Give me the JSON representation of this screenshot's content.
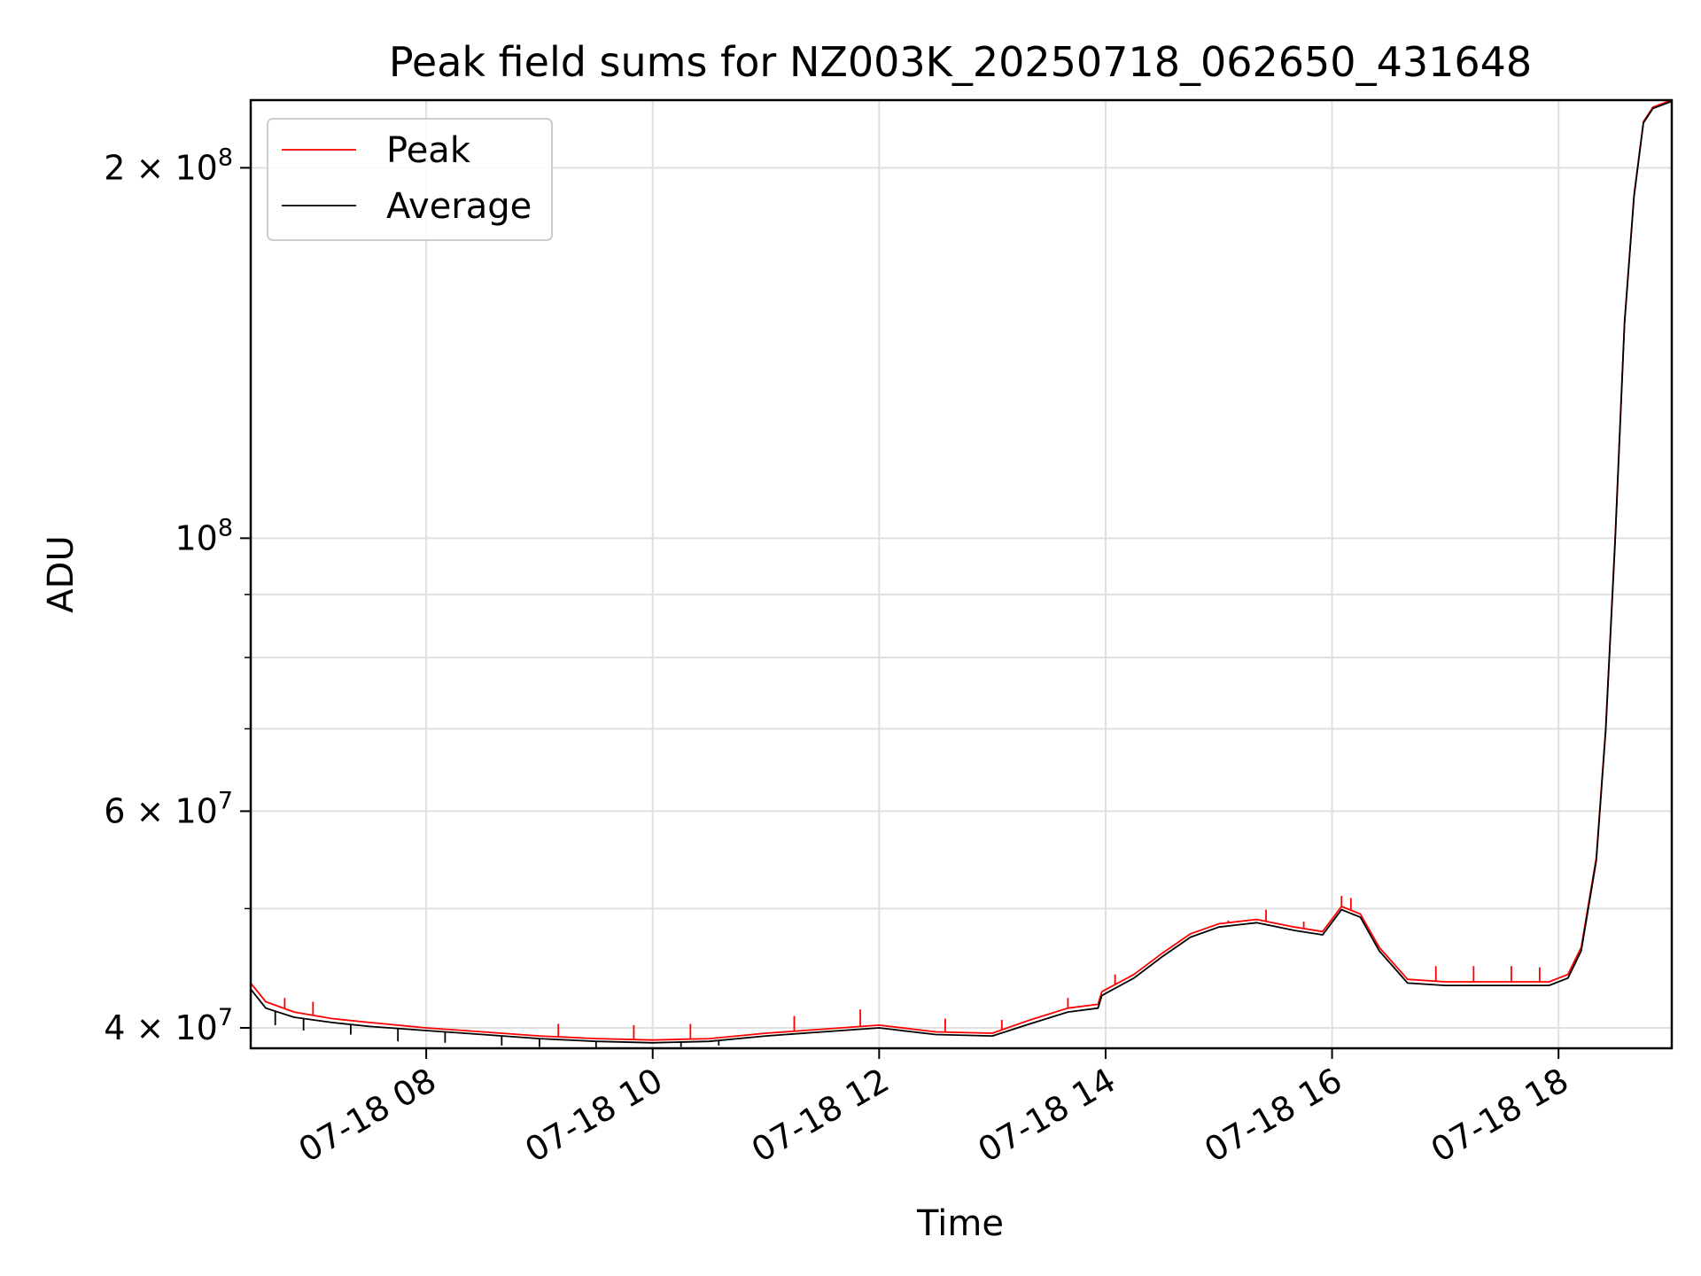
{
  "chart_data": {
    "type": "line",
    "title": "Peak field sums for NZ003K_20250718_062650_431648",
    "xlabel": "Time",
    "ylabel": "ADU",
    "yscale": "log",
    "xlim": [
      "2025-07-18 06:27",
      "2025-07-18 19:00"
    ],
    "ylim": [
      38500000,
      227000000
    ],
    "grid": true,
    "legend_position": "upper-left",
    "x_ticks": [
      {
        "value": "2025-07-18 08:00",
        "label": "07-18 08"
      },
      {
        "value": "2025-07-18 10:00",
        "label": "07-18 10"
      },
      {
        "value": "2025-07-18 12:00",
        "label": "07-18 12"
      },
      {
        "value": "2025-07-18 14:00",
        "label": "07-18 14"
      },
      {
        "value": "2025-07-18 16:00",
        "label": "07-18 16"
      },
      {
        "value": "2025-07-18 18:00",
        "label": "07-18 18"
      }
    ],
    "y_ticks": [
      {
        "value": 40000000,
        "label": "4 × 10^7",
        "mantissa": "4 × 10",
        "exp": "7"
      },
      {
        "value": 60000000,
        "label": "6 × 10^7",
        "mantissa": "6 × 10",
        "exp": "7"
      },
      {
        "value": 100000000,
        "label": "10^8",
        "mantissa": "10",
        "exp": "8"
      },
      {
        "value": 200000000,
        "label": "2 × 10^8",
        "mantissa": "2 × 10",
        "exp": "8"
      }
    ],
    "y_minor_ticks": [
      50000000,
      70000000,
      80000000,
      90000000
    ],
    "series": [
      {
        "name": "Peak",
        "color": "#ff0000",
        "x": [
          "2025-07-18 06:27",
          "2025-07-18 06:35",
          "2025-07-18 06:50",
          "2025-07-18 07:10",
          "2025-07-18 07:30",
          "2025-07-18 08:00",
          "2025-07-18 08:30",
          "2025-07-18 09:00",
          "2025-07-18 09:30",
          "2025-07-18 10:00",
          "2025-07-18 10:30",
          "2025-07-18 11:00",
          "2025-07-18 11:30",
          "2025-07-18 12:00",
          "2025-07-18 12:30",
          "2025-07-18 13:00",
          "2025-07-18 13:20",
          "2025-07-18 13:40",
          "2025-07-18 13:56",
          "2025-07-18 13:58",
          "2025-07-18 14:15",
          "2025-07-18 14:30",
          "2025-07-18 14:45",
          "2025-07-18 15:00",
          "2025-07-18 15:20",
          "2025-07-18 15:40",
          "2025-07-18 15:55",
          "2025-07-18 16:05",
          "2025-07-18 16:15",
          "2025-07-18 16:25",
          "2025-07-18 16:40",
          "2025-07-18 17:00",
          "2025-07-18 17:30",
          "2025-07-18 17:55",
          "2025-07-18 18:05",
          "2025-07-18 18:12",
          "2025-07-18 18:20",
          "2025-07-18 18:25",
          "2025-07-18 18:30",
          "2025-07-18 18:35",
          "2025-07-18 18:40",
          "2025-07-18 18:45",
          "2025-07-18 18:50",
          "2025-07-18 19:00"
        ],
        "values": [
          43500000,
          42000000,
          41200000,
          40700000,
          40400000,
          40000000,
          39700000,
          39400000,
          39200000,
          39100000,
          39200000,
          39600000,
          39900000,
          40200000,
          39700000,
          39600000,
          40600000,
          41500000,
          41800000,
          42800000,
          44200000,
          46000000,
          47700000,
          48600000,
          49000000,
          48300000,
          47900000,
          50200000,
          49500000,
          46500000,
          43800000,
          43600000,
          43600000,
          43600000,
          44200000,
          46500000,
          55000000,
          70000000,
          100000000,
          150000000,
          190000000,
          218000000,
          224000000,
          227000000
        ],
        "spikes": [
          {
            "x": "2025-07-18 06:45",
            "value": 42300000
          },
          {
            "x": "2025-07-18 07:00",
            "value": 42000000
          },
          {
            "x": "2025-07-18 09:10",
            "value": 40300000
          },
          {
            "x": "2025-07-18 09:50",
            "value": 40200000
          },
          {
            "x": "2025-07-18 10:20",
            "value": 40300000
          },
          {
            "x": "2025-07-18 11:15",
            "value": 40900000
          },
          {
            "x": "2025-07-18 11:50",
            "value": 41400000
          },
          {
            "x": "2025-07-18 12:35",
            "value": 40700000
          },
          {
            "x": "2025-07-18 13:05",
            "value": 40600000
          },
          {
            "x": "2025-07-18 13:40",
            "value": 42300000
          },
          {
            "x": "2025-07-18 14:05",
            "value": 44200000
          },
          {
            "x": "2025-07-18 14:40",
            "value": 47200000
          },
          {
            "x": "2025-07-18 15:05",
            "value": 48900000
          },
          {
            "x": "2025-07-18 15:25",
            "value": 49900000
          },
          {
            "x": "2025-07-18 15:45",
            "value": 48800000
          },
          {
            "x": "2025-07-18 16:05",
            "value": 51200000
          },
          {
            "x": "2025-07-18 16:10",
            "value": 51000000
          },
          {
            "x": "2025-07-18 16:55",
            "value": 44900000
          },
          {
            "x": "2025-07-18 17:15",
            "value": 44900000
          },
          {
            "x": "2025-07-18 17:35",
            "value": 44900000
          },
          {
            "x": "2025-07-18 17:50",
            "value": 44800000
          }
        ]
      },
      {
        "name": "Average",
        "color": "#000000",
        "x": [
          "2025-07-18 06:27",
          "2025-07-18 06:35",
          "2025-07-18 06:50",
          "2025-07-18 07:10",
          "2025-07-18 07:30",
          "2025-07-18 08:00",
          "2025-07-18 08:30",
          "2025-07-18 09:00",
          "2025-07-18 09:30",
          "2025-07-18 10:00",
          "2025-07-18 10:30",
          "2025-07-18 11:00",
          "2025-07-18 11:30",
          "2025-07-18 12:00",
          "2025-07-18 12:30",
          "2025-07-18 13:00",
          "2025-07-18 13:20",
          "2025-07-18 13:40",
          "2025-07-18 13:56",
          "2025-07-18 13:58",
          "2025-07-18 14:15",
          "2025-07-18 14:30",
          "2025-07-18 14:45",
          "2025-07-18 15:00",
          "2025-07-18 15:20",
          "2025-07-18 15:40",
          "2025-07-18 15:55",
          "2025-07-18 16:05",
          "2025-07-18 16:15",
          "2025-07-18 16:25",
          "2025-07-18 16:40",
          "2025-07-18 17:00",
          "2025-07-18 17:30",
          "2025-07-18 17:55",
          "2025-07-18 18:05",
          "2025-07-18 18:12",
          "2025-07-18 18:20",
          "2025-07-18 18:25",
          "2025-07-18 18:30",
          "2025-07-18 18:35",
          "2025-07-18 18:40",
          "2025-07-18 18:45",
          "2025-07-18 18:50",
          "2025-07-18 19:00"
        ],
        "values": [
          43000000,
          41500000,
          40800000,
          40400000,
          40100000,
          39800000,
          39500000,
          39200000,
          39000000,
          38900000,
          39000000,
          39400000,
          39700000,
          40000000,
          39500000,
          39400000,
          40300000,
          41200000,
          41500000,
          42500000,
          43900000,
          45700000,
          47400000,
          48300000,
          48700000,
          48000000,
          47600000,
          49900000,
          49200000,
          46200000,
          43500000,
          43300000,
          43300000,
          43300000,
          43900000,
          46200000,
          54700000,
          69700000,
          99500000,
          149500000,
          189500000,
          217500000,
          223500000,
          226500000
        ],
        "dips": [
          {
            "x": "2025-07-18 06:40",
            "value": 40200000
          },
          {
            "x": "2025-07-18 06:55",
            "value": 39800000
          },
          {
            "x": "2025-07-18 07:20",
            "value": 39500000
          },
          {
            "x": "2025-07-18 07:45",
            "value": 39000000
          },
          {
            "x": "2025-07-18 08:10",
            "value": 38900000
          },
          {
            "x": "2025-07-18 08:40",
            "value": 38700000
          },
          {
            "x": "2025-07-18 09:00",
            "value": 38600000
          },
          {
            "x": "2025-07-18 09:30",
            "value": 38500000
          },
          {
            "x": "2025-07-18 10:15",
            "value": 38600000
          },
          {
            "x": "2025-07-18 10:35",
            "value": 38700000
          }
        ]
      }
    ]
  }
}
